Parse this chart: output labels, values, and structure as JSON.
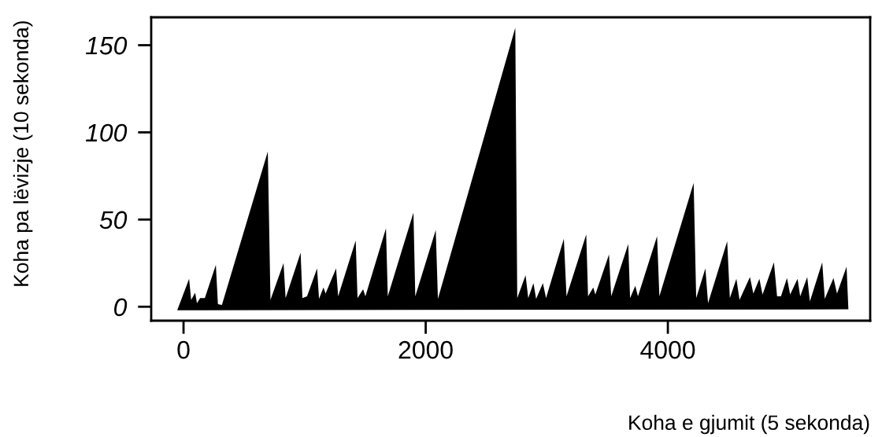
{
  "chart_data": {
    "type": "area",
    "xlabel": "Koha e gjumit (5 sekonda)",
    "ylabel": "Koha pa lëvizje (10 sekonda)",
    "color": "#000000",
    "x": [
      -52,
      46,
      63,
      96,
      111,
      137,
      176,
      267,
      284,
      317,
      696,
      718,
      826,
      843,
      967,
      982,
      1020,
      1103,
      1119,
      1156,
      1173,
      1260,
      1277,
      1422,
      1437,
      1483,
      1502,
      1672,
      1687,
      1899,
      1914,
      2083,
      2101,
      2740,
      2756,
      2825,
      2847,
      2890,
      2912,
      2968,
      2994,
      3141,
      3163,
      3326,
      3341,
      3384,
      3401,
      3514,
      3532,
      3673,
      3688,
      3731,
      3753,
      3911,
      3930,
      4213,
      4234,
      4310,
      4332,
      4490,
      4512,
      4566,
      4592,
      4678,
      4706,
      4756,
      4782,
      4876,
      4902,
      4934,
      4984,
      5010,
      5071,
      5093,
      5151,
      5173,
      5275,
      5296,
      5368,
      5397,
      5476,
      5491
    ],
    "values": [
      -2,
      16,
      4,
      8,
      2,
      5,
      5,
      24,
      1.5,
      1,
      89,
      4,
      25,
      5,
      31,
      5,
      6,
      22,
      4.5,
      11,
      7.5,
      22,
      6,
      38,
      5,
      10,
      6,
      45,
      6,
      54,
      6,
      44,
      4.5,
      160,
      5,
      18,
      5,
      13.5,
      4.5,
      13.5,
      5,
      39,
      6,
      41.5,
      6,
      11,
      7,
      30,
      6,
      36,
      5,
      12,
      6,
      40.5,
      6,
      71,
      5,
      22,
      2,
      37.5,
      5,
      16,
      4,
      17,
      7.5,
      16,
      7,
      25.5,
      6,
      6,
      16.5,
      7,
      16,
      6,
      17,
      3,
      25.5,
      4.5,
      16.5,
      7.5,
      23,
      -1.5
    ],
    "xlim": [
      -267,
      5671
    ],
    "ylim": [
      -8,
      166
    ],
    "xticks": [
      0,
      2000,
      4000
    ],
    "yticks": [
      0,
      50,
      100,
      150
    ],
    "grid": false
  }
}
